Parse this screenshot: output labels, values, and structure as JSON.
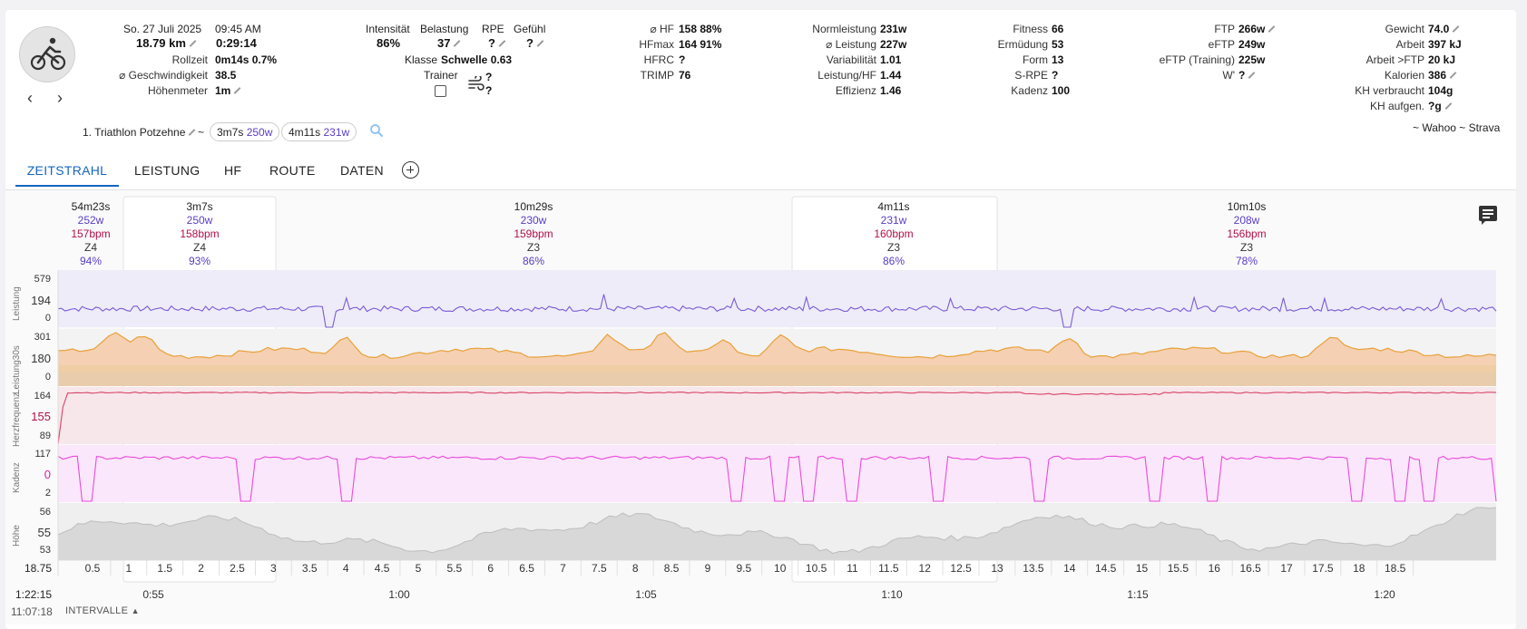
{
  "header": {
    "date": "So. 27 Juli 2025",
    "time": "09:45 AM",
    "distance": "18.79 km",
    "duration": "0:29:14",
    "rollzeit_label": "Rollzeit",
    "rollzeit_value": "0m14s 0.7%",
    "speed_label": "⌀ Geschwindigkeit",
    "speed_value": "38.5",
    "elev_label": "Höhenmeter",
    "elev_value": "1m"
  },
  "load": {
    "intensitaet_label": "Intensität",
    "intensitaet_value": "86%",
    "belastung_label": "Belastung",
    "belastung_value": "37",
    "rpe_label": "RPE",
    "rpe_value": "?",
    "gefuehl_label": "Gefühl",
    "gefuehl_value": "?",
    "klasse_label": "Klasse",
    "klasse_value": "Schwelle 0.63",
    "trainer_label": "Trainer",
    "wind_a": "?",
    "wind_b": "?"
  },
  "hr": {
    "hf_label": "⌀ HF",
    "hf_value": "158 88%",
    "hfmax_label": "HFmax",
    "hfmax_value": "164 91%",
    "hfrc_label": "HFRC",
    "hfrc_value": "?",
    "trimp_label": "TRIMP",
    "trimp_value": "76"
  },
  "power": {
    "np_label": "Normleistung",
    "np_value": "231w",
    "avg_label": "⌀ Leistung",
    "avg_value": "227w",
    "var_label": "Variabilität",
    "var_value": "1.01",
    "phf_label": "Leistung/HF",
    "phf_value": "1.44",
    "eff_label": "Effizienz",
    "eff_value": "1.46"
  },
  "fitness": {
    "fit_label": "Fitness",
    "fit_value": "66",
    "erm_label": "Ermüdung",
    "erm_value": "53",
    "form_label": "Form",
    "form_value": "13",
    "srpe_label": "S-RPE",
    "srpe_value": "?",
    "kad_label": "Kadenz",
    "kad_value": "100"
  },
  "ftp": {
    "ftp_label": "FTP",
    "ftp_value": "266w",
    "eftp_label": "eFTP",
    "eftp_value": "249w",
    "eftpt_label": "eFTP (Training)",
    "eftpt_value": "225w",
    "wp_label": "W'",
    "wp_value": "?"
  },
  "body": {
    "gewicht_label": "Gewicht",
    "gewicht_value": "74.0",
    "arbeit_label": "Arbeit",
    "arbeit_value": "397 kJ",
    "aftp_label": "Arbeit >FTP",
    "aftp_value": "20 kJ",
    "kal_label": "Kalorien",
    "kal_value": "386",
    "khv_label": "KH verbraucht",
    "khv_value": "104g",
    "kha_label": "KH aufgen.",
    "kha_value": "?g"
  },
  "race": {
    "name": "1. Triathlon Potzehne",
    "tilde": "~",
    "chip1_time": "3m7s",
    "chip1_power": "250w",
    "chip2_time": "4m11s",
    "chip2_power": "231w",
    "sources": "~ Wahoo ~ Strava"
  },
  "tabs": [
    "ZEITSTRAHL",
    "LEISTUNG",
    "HF",
    "ROUTE",
    "DATEN"
  ],
  "segments": [
    {
      "dur": "54m23s",
      "w": "252w",
      "bpm": "157bpm",
      "z": "Z4",
      "pct": "94%"
    },
    {
      "dur": "3m7s",
      "w": "250w",
      "bpm": "158bpm",
      "z": "Z4",
      "pct": "93%"
    },
    {
      "dur": "10m29s",
      "w": "230w",
      "bpm": "159bpm",
      "z": "Z3",
      "pct": "86%"
    },
    {
      "dur": "4m11s",
      "w": "231w",
      "bpm": "160bpm",
      "z": "Z3",
      "pct": "86%"
    },
    {
      "dur": "10m10s",
      "w": "208w",
      "bpm": "156bpm",
      "z": "Z3",
      "pct": "78%"
    }
  ],
  "axes": {
    "power_ticks": [
      "579",
      "194",
      "0"
    ],
    "power_title": "Leistung",
    "p30_ticks": [
      "301",
      "180",
      "0"
    ],
    "p30_title": "Leistung30s",
    "hr_ticks": [
      "164",
      "155",
      "89"
    ],
    "hr_title": "Herzfrequenz",
    "cad_ticks": [
      "117",
      "0",
      "2"
    ],
    "cad_title": "Kadenz",
    "alt_ticks": [
      "56",
      "55",
      "53"
    ],
    "alt_title": "Höhe",
    "dist_start": "18.75",
    "dist_ticks": [
      "0.5",
      "1",
      "1.5",
      "2",
      "2.5",
      "3",
      "3.5",
      "4",
      "4.5",
      "5",
      "5.5",
      "6",
      "6.5",
      "7",
      "7.5",
      "8",
      "8.5",
      "9",
      "9.5",
      "10",
      "10.5",
      "11",
      "11.5",
      "12",
      "12.5",
      "13",
      "13.5",
      "14",
      "14.5",
      "15",
      "15.5",
      "16",
      "16.5",
      "17",
      "17.5",
      "18",
      "18.5"
    ],
    "time_start": "1:22:15",
    "time_ticks": [
      "0:55",
      "1:00",
      "1:05",
      "1:10",
      "1:15",
      "1:20"
    ],
    "clock": "11:07:18",
    "intervals_label": "INTERVALLE"
  },
  "colors": {
    "accent": "#1565c0",
    "power": "#7b5bd6",
    "hr": "#d9436a",
    "cadence": "#e84bdc",
    "altitude": "#bdbdbd"
  }
}
